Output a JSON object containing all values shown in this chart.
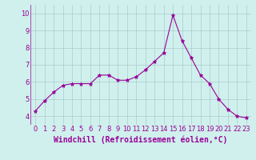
{
  "x": [
    0,
    1,
    2,
    3,
    4,
    5,
    6,
    7,
    8,
    9,
    10,
    11,
    12,
    13,
    14,
    15,
    16,
    17,
    18,
    19,
    20,
    21,
    22,
    23
  ],
  "y": [
    4.3,
    4.9,
    5.4,
    5.8,
    5.9,
    5.9,
    5.9,
    6.4,
    6.4,
    6.1,
    6.1,
    6.3,
    6.7,
    7.2,
    7.7,
    9.9,
    8.4,
    7.4,
    6.4,
    5.9,
    5.0,
    4.4,
    4.0,
    3.9
  ],
  "line_color": "#990099",
  "marker": "*",
  "marker_size": 3.5,
  "bg_color": "#cff0ec",
  "grid_color": "#aacccc",
  "xlabel": "Windchill (Refroidissement éolien,°C)",
  "xlabel_color": "#990099",
  "xlabel_fontsize": 7,
  "tick_color": "#990099",
  "tick_fontsize": 6,
  "ylim": [
    3.5,
    10.5
  ],
  "xlim": [
    -0.5,
    23.5
  ],
  "yticks": [
    4,
    5,
    6,
    7,
    8,
    9,
    10
  ],
  "xticks": [
    0,
    1,
    2,
    3,
    4,
    5,
    6,
    7,
    8,
    9,
    10,
    11,
    12,
    13,
    14,
    15,
    16,
    17,
    18,
    19,
    20,
    21,
    22,
    23
  ]
}
